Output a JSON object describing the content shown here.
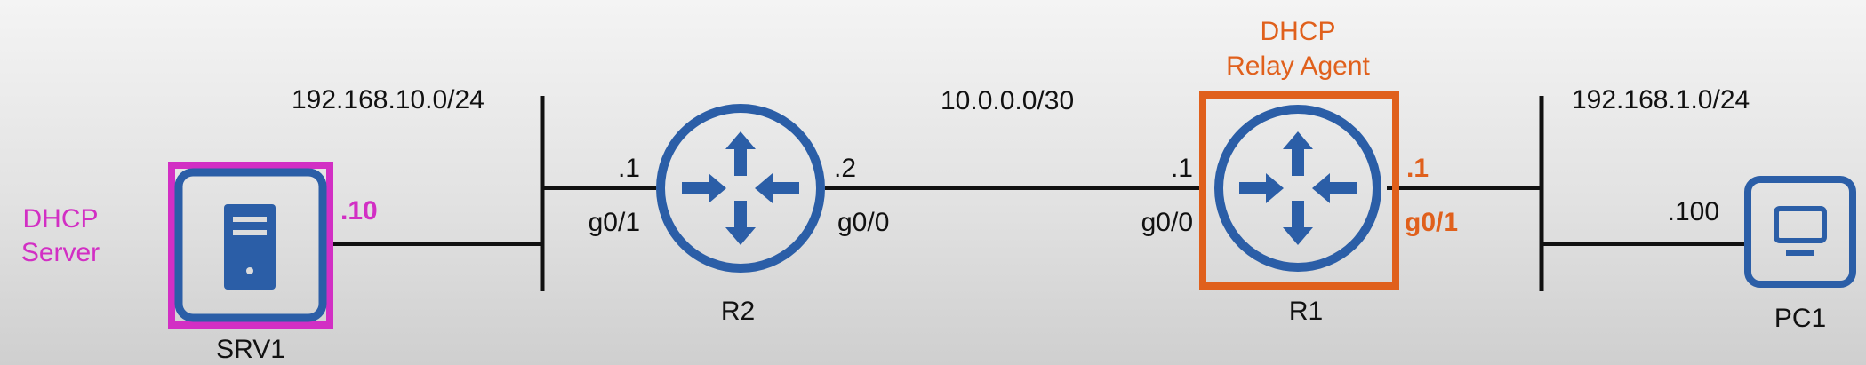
{
  "colors": {
    "device_blue": "#2b5ea7",
    "dhcp_server_highlight": "#d22fc4",
    "relay_agent_highlight": "#e0601c",
    "link": "#111111"
  },
  "segments": {
    "left_subnet": "192.168.10.0/24",
    "middle_subnet": "10.0.0.0/30",
    "right_subnet": "192.168.1.0/24"
  },
  "srv1": {
    "name": "SRV1",
    "role_line1": "DHCP",
    "role_line2": "Server",
    "host_octet": ".10",
    "icon": "server-icon"
  },
  "r2": {
    "name": "R2",
    "left_ip": ".1",
    "left_interface": "g0/1",
    "right_ip": ".2",
    "right_interface": "g0/0",
    "icon": "router-icon"
  },
  "r1": {
    "name": "R1",
    "role_line1": "DHCP",
    "role_line2": "Relay Agent",
    "left_ip": ".1",
    "left_interface": "g0/0",
    "right_ip": ".1",
    "right_interface": "g0/1",
    "icon": "router-icon"
  },
  "pc1": {
    "name": "PC1",
    "host_octet": ".100",
    "icon": "pc-icon"
  }
}
